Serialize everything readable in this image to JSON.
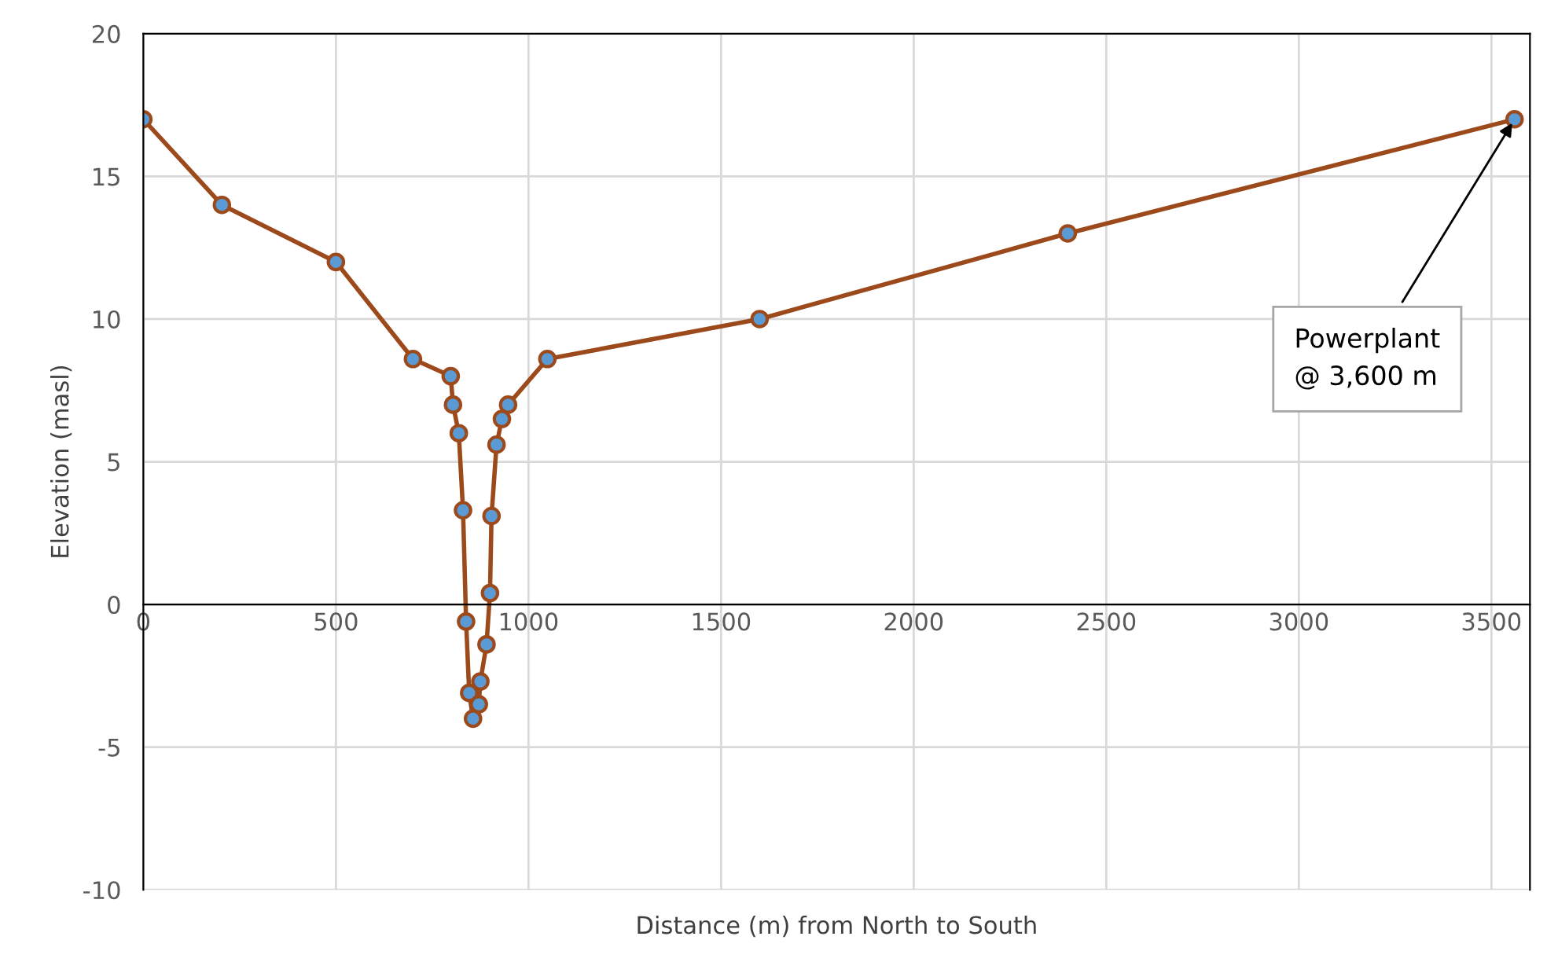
{
  "chart_data": {
    "type": "line",
    "xlabel": "Distance (m) from North to South",
    "ylabel": "Elevation (masl)",
    "x": [
      0,
      204,
      500,
      700,
      798,
      804,
      819,
      830,
      838,
      846,
      856,
      871,
      875,
      891,
      900,
      904,
      917,
      931,
      947,
      1049,
      1600,
      2400,
      3560
    ],
    "series": [
      {
        "color": "#9c4a1c",
        "values": [
          17,
          14,
          12,
          8.6,
          8,
          7,
          6,
          3.3,
          -0.6,
          -3.1,
          -4,
          -3.5,
          -2.7,
          -1.4,
          0.4,
          3.1,
          5.6,
          6.5,
          7,
          8.6,
          10,
          13,
          17
        ]
      }
    ],
    "xlim": [
      0,
      3600
    ],
    "xticks": [
      0,
      500,
      1000,
      1500,
      2000,
      2500,
      3000,
      3500
    ],
    "ylim": [
      -10,
      20
    ],
    "yticks": [
      -10,
      -5,
      0,
      5,
      10,
      15,
      20
    ],
    "grid": true,
    "marker": "circle",
    "line_style": "solid",
    "annotations": [
      {
        "text": "Powerplant\n@ 3,600 m",
        "x": 3560,
        "y": 17
      }
    ]
  }
}
